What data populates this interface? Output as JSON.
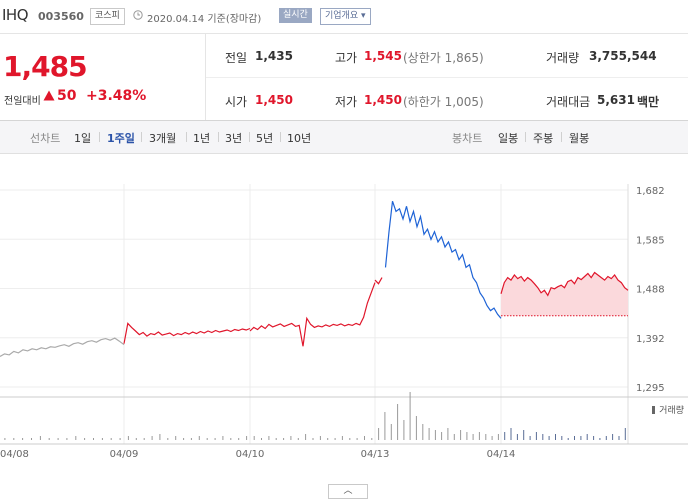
{
  "header": {
    "name": "IHQ",
    "code": "003560",
    "market_badge": "코스피",
    "date_text": "2020.04.14 기준(장마감)",
    "realtime_badge": "실시간",
    "company_info_button": "기업개요"
  },
  "quote": {
    "price": "1,485",
    "prev_compare_label": "전일대비",
    "change": "50",
    "change_pct": "+3.48%",
    "prev_close_label": "전일",
    "prev_close": "1,435",
    "high_label": "고가",
    "high": "1,545",
    "upper_limit": "(상한가 1,865)",
    "volume_label": "거래량",
    "volume": "3,755,544",
    "open_label": "시가",
    "open": "1,450",
    "low_label": "저가",
    "low": "1,450",
    "lower_limit": "(하한가 1,005)",
    "amount_label": "거래대금",
    "amount": "5,631",
    "amount_unit": "백만"
  },
  "periods": {
    "line_label": "선차트",
    "items": [
      "1일",
      "1주일",
      "3개월",
      "1년",
      "3년",
      "5년",
      "10년"
    ],
    "active": "1주일",
    "candle_label": "봉차트",
    "candle_items": [
      "일봉",
      "주봉",
      "월봉"
    ]
  },
  "colors": {
    "up": "#e0162b",
    "down": "#1e63d6",
    "prior": "#aaaaaa",
    "fill": "#fbd9dc",
    "volume": "#999999"
  },
  "chart_data": {
    "type": "line",
    "yticks": [
      "1,682",
      "1,585",
      "1,488",
      "1,392",
      "1,295"
    ],
    "ylim": [
      1295,
      1682
    ],
    "x_ticks": [
      "04/08",
      "04/09",
      "04/10",
      "04/13",
      "04/14"
    ],
    "volume_legend": "거래량",
    "reference_price": 1435,
    "segments": [
      {
        "day": "04/08",
        "color": "prior",
        "points": [
          1355,
          1360,
          1358,
          1365,
          1362,
          1368,
          1366,
          1370,
          1368,
          1372,
          1370,
          1374,
          1373,
          1376,
          1378,
          1375,
          1380,
          1382,
          1379,
          1384,
          1386,
          1383,
          1388,
          1390,
          1387,
          1391,
          1385,
          1378
        ]
      },
      {
        "day": "04/09",
        "color": "up",
        "points": [
          1380,
          1420,
          1412,
          1405,
          1398,
          1402,
          1395,
          1400,
          1398,
          1403,
          1397,
          1399,
          1401,
          1396,
          1400,
          1398,
          1402,
          1399,
          1403,
          1400,
          1404,
          1401,
          1405,
          1402,
          1406,
          1403,
          1405,
          1407,
          1404,
          1408,
          1406,
          1409,
          1407,
          1410
        ]
      },
      {
        "day": "04/10",
        "color": "up",
        "points": [
          1405,
          1412,
          1408,
          1415,
          1410,
          1418,
          1413,
          1416,
          1419,
          1414,
          1417,
          1420,
          1414,
          1416,
          1375,
          1430,
          1418,
          1412,
          1415,
          1413,
          1417,
          1414,
          1418,
          1416,
          1419,
          1415,
          1418,
          1416,
          1420,
          1417,
          1432,
          1460,
          1480,
          1500
        ]
      },
      {
        "day": "04/13",
        "color": "up",
        "points": [
          1505,
          1498,
          1510
        ]
      },
      {
        "day": "04/13",
        "color": "down",
        "points": [
          1530,
          1600,
          1660,
          1640,
          1645,
          1625,
          1650,
          1620,
          1640,
          1610,
          1630,
          1595,
          1605,
          1585,
          1600,
          1580,
          1590,
          1570,
          1580,
          1560,
          1565,
          1545,
          1555,
          1530,
          1535,
          1510,
          1500,
          1480,
          1470,
          1455,
          1445,
          1450,
          1438,
          1430
        ]
      },
      {
        "day": "04/14",
        "color": "up",
        "points": [
          1478,
          1500,
          1510,
          1505,
          1515,
          1508,
          1512,
          1503,
          1510,
          1505,
          1498,
          1490,
          1480,
          1485,
          1475,
          1490,
          1488,
          1492,
          1495,
          1490,
          1502,
          1505,
          1498,
          1510,
          1506,
          1512,
          1518,
          1510,
          1520,
          1515,
          1510,
          1505,
          1512,
          1508,
          1515,
          1505,
          1500,
          1490,
          1485
        ]
      }
    ],
    "volume": {
      "04/08": [
        1,
        1,
        1,
        1,
        2,
        1,
        1,
        1,
        2,
        1,
        1,
        1,
        1,
        1
      ],
      "04/09": [
        2,
        1,
        1,
        2,
        3,
        1,
        2,
        1,
        1,
        2,
        1,
        1,
        2,
        1,
        1,
        2
      ],
      "04/10": [
        2,
        1,
        2,
        1,
        1,
        2,
        1,
        3,
        1,
        2,
        1,
        1,
        2,
        1,
        1,
        2,
        1
      ],
      "04/13": [
        6,
        14,
        8,
        18,
        10,
        24,
        12,
        8,
        6,
        5,
        4,
        6,
        3,
        5,
        4,
        3,
        4,
        3,
        2,
        3
      ],
      "04/14": [
        4,
        6,
        3,
        5,
        2,
        4,
        3,
        2,
        3,
        2,
        1,
        2,
        2,
        3,
        2,
        1,
        2,
        3,
        2,
        6
      ]
    }
  }
}
